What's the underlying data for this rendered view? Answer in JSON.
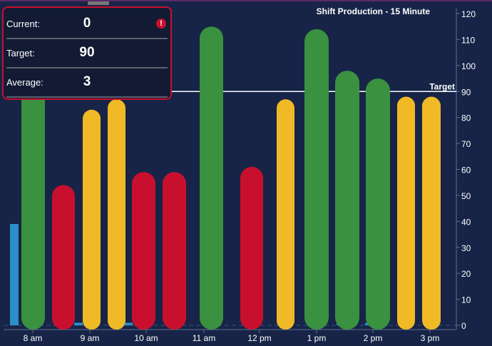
{
  "panel": {
    "rows": [
      {
        "label": "Current:",
        "value": "0"
      },
      {
        "label": "Target:",
        "value": "90"
      },
      {
        "label": "Average:",
        "value": "3"
      }
    ]
  },
  "chart_data": {
    "type": "bar",
    "title": "Shift Production - 15 Minute",
    "ylim": [
      0,
      120
    ],
    "yticks": [
      0,
      10,
      20,
      30,
      40,
      50,
      60,
      70,
      80,
      90,
      100,
      110,
      120
    ],
    "xticks": [
      "8 am",
      "9 am",
      "10 am",
      "11 am",
      "12 pm",
      "1 pm",
      "2 pm",
      "3 pm"
    ],
    "target": {
      "label": "Target",
      "value": 90
    },
    "series": [
      {
        "name": "production",
        "values": [
          114,
          54,
          83,
          87,
          59,
          59,
          115,
          61,
          87,
          114,
          98,
          95,
          88,
          88
        ],
        "status": [
          "good",
          "bad",
          "warn",
          "warn",
          "bad",
          "bad",
          "good",
          "bad",
          "warn",
          "good",
          "good",
          "good",
          "warn",
          "warn"
        ]
      },
      {
        "name": "current",
        "values": [
          39,
          0,
          1,
          0,
          1,
          0,
          0,
          0,
          0,
          0,
          1,
          1,
          0,
          0
        ]
      }
    ],
    "colors": {
      "good": "#3a9140",
      "bad": "#c8102e",
      "warn": "#f0b926",
      "current": "#2b8fc9",
      "axis": "#5f7191"
    }
  }
}
